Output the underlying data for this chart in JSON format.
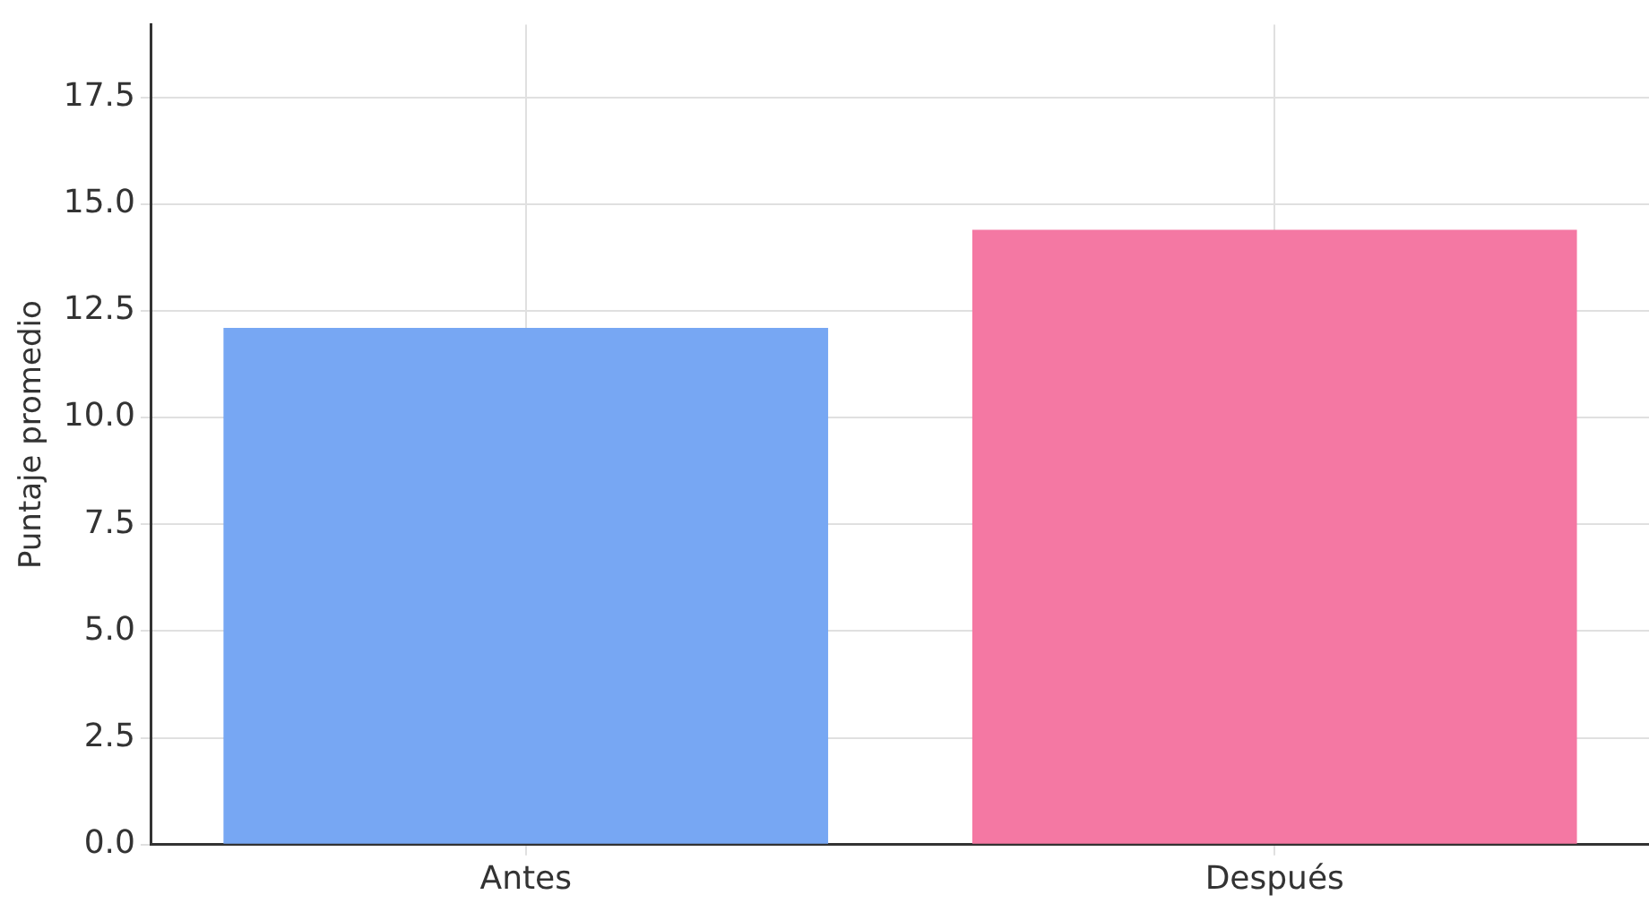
{
  "chart_data": {
    "type": "bar",
    "ylabel": "Puntaje promedio",
    "categories": [
      "Antes",
      "Después"
    ],
    "values": [
      12.1,
      14.4
    ],
    "colors": [
      "#77a7f3",
      "#f478a3"
    ],
    "ylim": [
      0,
      19.2
    ],
    "yticks": [
      {
        "value": 0,
        "label": "0.0"
      },
      {
        "value": 2.5,
        "label": "2.5"
      },
      {
        "value": 5,
        "label": "5.0"
      },
      {
        "value": 7.5,
        "label": "7.5"
      },
      {
        "value": 10,
        "label": "10.0"
      },
      {
        "value": 12.5,
        "label": "12.5"
      },
      {
        "value": 15,
        "label": "15.0"
      },
      {
        "value": 17.5,
        "label": "17.5"
      }
    ],
    "grid": true,
    "legend": false
  }
}
